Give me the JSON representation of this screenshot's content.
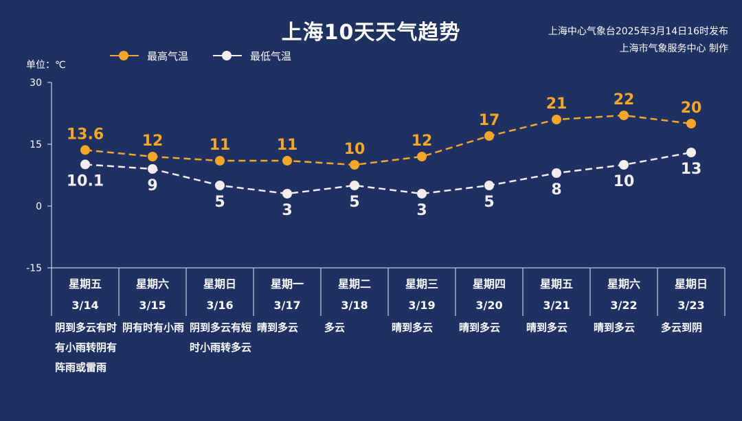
{
  "header": {
    "title": "上海10天天气趋势",
    "source_line1": "上海中心气象台2025年3月14日16时发布",
    "source_line2": "上海市气象服务中心 制作"
  },
  "unit_label": "单位：℃",
  "colors": {
    "background": "#1f3162",
    "high": "#f5a623",
    "low": "#f3eded",
    "axis": "#e8ecf5"
  },
  "chart_data": {
    "type": "line",
    "legend_position": "top-left",
    "grid": false,
    "ylim": [
      -15,
      30
    ],
    "yticks": [
      "30",
      "15",
      "0",
      "-15"
    ],
    "categories": [
      "3/14",
      "3/15",
      "3/16",
      "3/17",
      "3/18",
      "3/19",
      "3/20",
      "3/21",
      "3/22",
      "3/23"
    ],
    "weekdays": [
      "星期五",
      "星期六",
      "星期日",
      "星期一",
      "星期二",
      "星期三",
      "星期四",
      "星期五",
      "星期六",
      "星期日"
    ],
    "weather": [
      "阴到多云有时有小雨转阴有阵雨或雷雨",
      "阴有时有小雨",
      "阴到多云有短时小雨转多云",
      "晴到多云",
      "多云",
      "晴到多云",
      "晴到多云",
      "晴到多云",
      "晴到多云",
      "多云到阴"
    ],
    "series": [
      {
        "name": "最高气温",
        "color": "#f5a623",
        "values": [
          13.6,
          12,
          11,
          11,
          10,
          12,
          17,
          21,
          22,
          20
        ],
        "labels": [
          "13.6",
          "12",
          "11",
          "11",
          "10",
          "12",
          "17",
          "21",
          "22",
          "20"
        ]
      },
      {
        "name": "最低气温",
        "color": "#f3eded",
        "values": [
          10.1,
          9,
          5,
          3,
          5,
          3,
          5,
          8,
          10,
          13
        ],
        "labels": [
          "10.1",
          "9",
          "5",
          "3",
          "5",
          "3",
          "5",
          "8",
          "10",
          "13"
        ]
      }
    ]
  }
}
